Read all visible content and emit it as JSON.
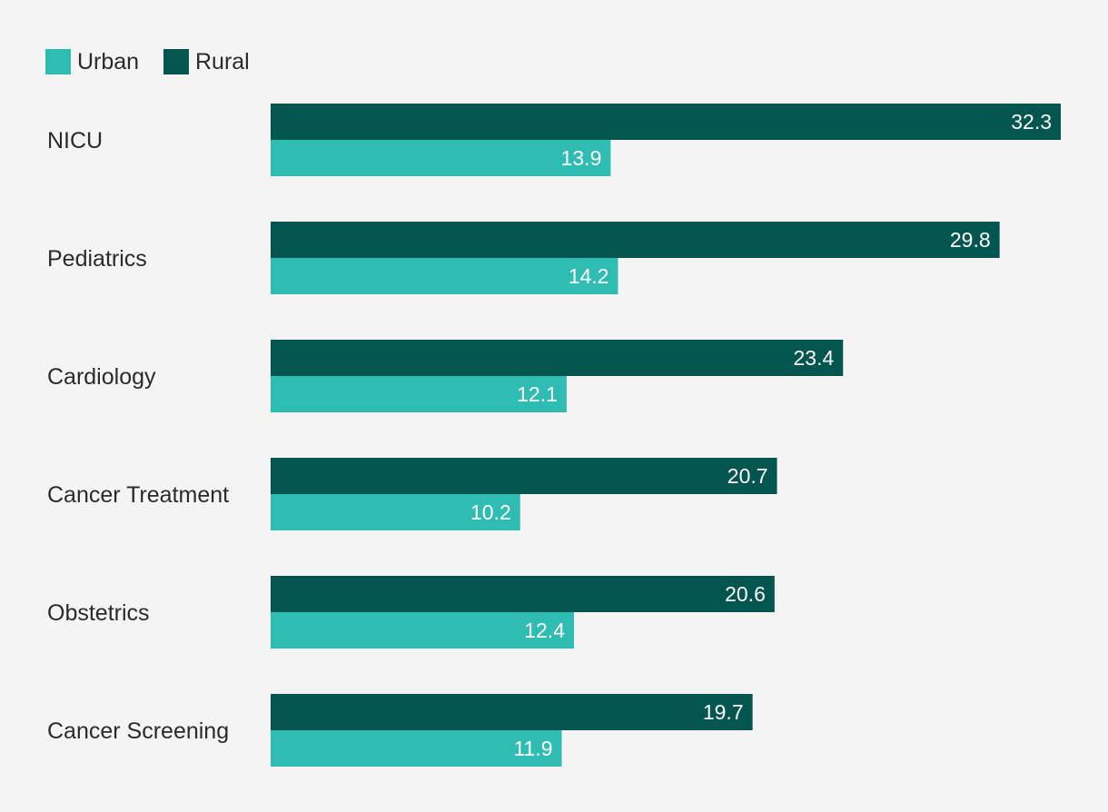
{
  "chart_data": {
    "type": "bar",
    "orientation": "horizontal",
    "categories": [
      "NICU",
      "Pediatrics",
      "Cardiology",
      "Cancer Treatment",
      "Obstetrics",
      "Cancer Screening"
    ],
    "series": [
      {
        "name": "Rural",
        "color": "#02564f",
        "values": [
          32.3,
          29.8,
          23.4,
          20.7,
          20.6,
          19.7
        ]
      },
      {
        "name": "Urban",
        "color": "#2fbdb3",
        "values": [
          13.9,
          14.2,
          12.1,
          10.2,
          12.4,
          11.9
        ]
      }
    ],
    "legend": {
      "position": "top-left",
      "order": [
        "Urban",
        "Rural"
      ]
    },
    "value_labels": "inside-end",
    "xlim": [
      0,
      32.3
    ],
    "grid": false,
    "title": "",
    "xlabel": "",
    "ylabel": ""
  }
}
